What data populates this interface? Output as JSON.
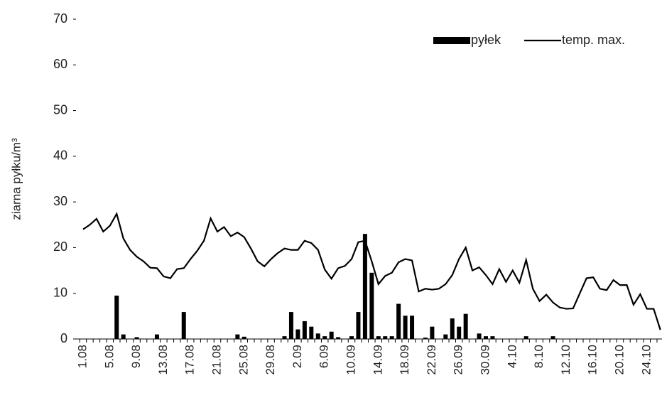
{
  "chart_data": {
    "type": "combo",
    "y_label": "ziarna pyłku/m³",
    "ylim": [
      0,
      70
    ],
    "yticks": [
      0,
      10,
      20,
      30,
      40,
      50,
      60,
      70
    ],
    "legend": "top-right",
    "categories": [
      "1.08",
      null,
      null,
      null,
      "5.08",
      null,
      null,
      null,
      "9.08",
      null,
      null,
      null,
      "13.08",
      null,
      null,
      null,
      "17.08",
      null,
      null,
      null,
      "21.08",
      null,
      null,
      null,
      "25.08",
      null,
      null,
      null,
      "29.08",
      null,
      null,
      null,
      "2.09",
      null,
      null,
      null,
      "6.09",
      null,
      null,
      null,
      "10.09",
      null,
      null,
      null,
      "14.09",
      null,
      null,
      null,
      "18.09",
      null,
      null,
      null,
      "22.09",
      null,
      null,
      null,
      "26.09",
      null,
      null,
      null,
      "30.09",
      null,
      null,
      null,
      "4.10",
      null,
      null,
      null,
      "8.10",
      null,
      null,
      null,
      "12.10",
      null,
      null,
      null,
      "16.10",
      null,
      null,
      null,
      "20.10",
      null,
      null,
      null,
      "24.10",
      null,
      null
    ],
    "series": [
      {
        "name": "pyłek",
        "type": "bar",
        "color": "#000000",
        "values": [
          0,
          0,
          0,
          0,
          0,
          9.5,
          1.0,
          0,
          0.4,
          0,
          0,
          1.0,
          0,
          0,
          0,
          5.9,
          0,
          0,
          0,
          0,
          0,
          0,
          0,
          1.0,
          0.5,
          0,
          0,
          0,
          0,
          0,
          0.6,
          5.9,
          2.1,
          3.9,
          2.7,
          1.2,
          0.6,
          1.6,
          0.4,
          0,
          0.6,
          5.9,
          23,
          14.5,
          0.6,
          0.6,
          0.6,
          7.7,
          5.1,
          5.1,
          0,
          0.3,
          2.7,
          0,
          1.0,
          4.5,
          2.7,
          5.5,
          0,
          1.2,
          0.6,
          0.6,
          0,
          0,
          0,
          0,
          0.6,
          0,
          0,
          0,
          0.6,
          0,
          0,
          0,
          0,
          0,
          0,
          0,
          0,
          0,
          0,
          0,
          0,
          0,
          0,
          0,
          0
        ]
      },
      {
        "name": "temp. max.",
        "type": "line",
        "color": "#000000",
        "values": [
          24,
          25,
          26.3,
          23.5,
          24.8,
          27.4,
          22,
          19.5,
          18,
          17,
          15.6,
          15.5,
          13.7,
          13.3,
          15.3,
          15.5,
          17.5,
          19.3,
          21.5,
          26.4,
          23.5,
          24.5,
          22.5,
          23.3,
          22.3,
          19.8,
          17,
          15.9,
          17.5,
          18.8,
          19.8,
          19.5,
          19.5,
          21.5,
          21,
          19.5,
          15.2,
          13.2,
          15.5,
          16,
          17.5,
          21.2,
          21.5,
          17,
          12,
          13.8,
          14.5,
          16.8,
          17.5,
          17.2,
          10.4,
          11,
          10.8,
          11,
          12,
          14,
          17.5,
          20,
          15,
          15.7,
          14,
          12,
          15.3,
          12.5,
          15,
          12.3,
          17.3,
          11,
          8.3,
          9.7,
          8,
          6.9,
          6.6,
          6.7,
          10,
          13.3,
          13.5,
          11,
          10.7,
          12.9,
          11.8,
          11.8,
          7.5,
          9.8,
          6.6,
          6.6,
          2
        ]
      }
    ]
  }
}
